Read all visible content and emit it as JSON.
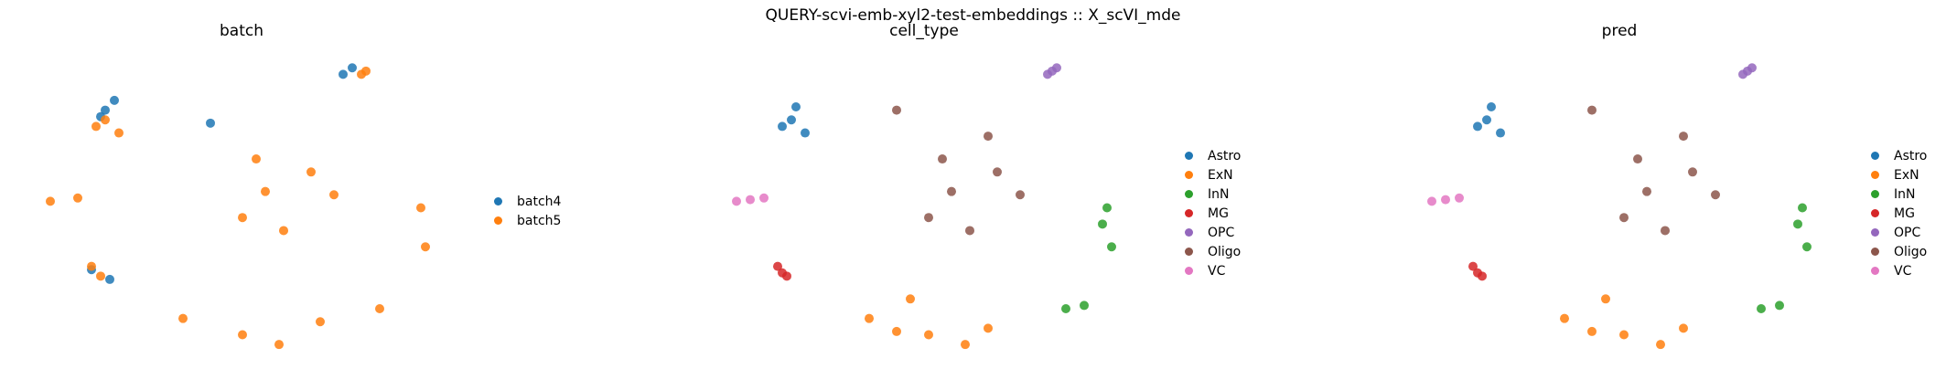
{
  "suptitle": "QUERY-scvi-emb-xyl2-test-embeddings :: X_scVI_mde",
  "chart_data": [
    {
      "type": "scatter",
      "title": "batch",
      "embedding": "X_scVI_mde",
      "legend_placement": "right",
      "grid": false,
      "axes_visible": false,
      "categories": [
        {
          "name": "batch4",
          "color": "#1f77b4"
        },
        {
          "name": "batch5",
          "color": "#ff7f0e"
        }
      ],
      "series": [
        {
          "name": "batch4",
          "x": [
            -4.1,
            -3.9,
            -4.2,
            -1.8,
            -4.4,
            -4.0,
            1.3,
            1.1
          ],
          "y": [
            3.3,
            3.6,
            3.1,
            2.9,
            -1.6,
            -1.9,
            4.6,
            4.4
          ]
        },
        {
          "name": "batch5",
          "x": [
            -4.1,
            -4.3,
            -3.8,
            -4.4,
            -4.2,
            -0.6,
            0.4,
            -1.1,
            -0.2,
            0.9,
            -0.8,
            1.6,
            1.5,
            2.8,
            2.9,
            -2.4,
            -1.1,
            -0.3,
            0.6,
            1.9,
            -5.3,
            -4.7
          ],
          "y": [
            3.0,
            2.8,
            2.6,
            -1.5,
            -1.8,
            0.8,
            1.4,
            0.0,
            -0.4,
            0.7,
            1.8,
            4.5,
            4.4,
            0.3,
            -0.9,
            -3.1,
            -3.6,
            -3.9,
            -3.2,
            -2.8,
            0.5,
            0.6
          ]
        }
      ]
    },
    {
      "type": "scatter",
      "title": "cell_type",
      "embedding": "X_scVI_mde",
      "legend_placement": "right",
      "grid": false,
      "axes_visible": false,
      "categories": [
        {
          "name": "Astro",
          "color": "#1f77b4"
        },
        {
          "name": "ExN",
          "color": "#ff7f0e"
        },
        {
          "name": "InN",
          "color": "#2ca02c"
        },
        {
          "name": "MG",
          "color": "#d62728"
        },
        {
          "name": "OPC",
          "color": "#9467bd"
        },
        {
          "name": "Oligo",
          "color": "#8c564b"
        },
        {
          "name": "VC",
          "color": "#e377c2"
        }
      ],
      "series": [
        {
          "name": "Astro",
          "x": [
            -4.1,
            -4.3,
            -3.8,
            -4.0
          ],
          "y": [
            3.0,
            2.8,
            2.6,
            3.4
          ]
        },
        {
          "name": "ExN",
          "x": [
            -2.4,
            -1.8,
            -1.1,
            -0.3,
            0.2,
            -1.5
          ],
          "y": [
            -3.1,
            -3.5,
            -3.6,
            -3.9,
            -3.4,
            -2.5
          ]
        },
        {
          "name": "InN",
          "x": [
            2.8,
            2.9,
            2.7,
            1.9,
            2.3
          ],
          "y": [
            0.3,
            -0.9,
            -0.2,
            -2.8,
            -2.7
          ]
        },
        {
          "name": "MG",
          "x": [
            -4.4,
            -4.2,
            -4.3
          ],
          "y": [
            -1.5,
            -1.8,
            -1.7
          ]
        },
        {
          "name": "OPC",
          "x": [
            1.6,
            1.5,
            1.7
          ],
          "y": [
            4.5,
            4.4,
            4.6
          ]
        },
        {
          "name": "Oligo",
          "x": [
            -0.6,
            0.4,
            -1.1,
            -0.2,
            0.9,
            -0.8,
            0.2,
            -1.8
          ],
          "y": [
            0.8,
            1.4,
            0.0,
            -0.4,
            0.7,
            1.8,
            2.5,
            3.3
          ]
        },
        {
          "name": "VC",
          "x": [
            -5.3,
            -4.7,
            -5.0
          ],
          "y": [
            0.5,
            0.6,
            0.55
          ]
        }
      ]
    },
    {
      "type": "scatter",
      "title": "pred",
      "embedding": "X_scVI_mde",
      "legend_placement": "right",
      "grid": false,
      "axes_visible": false,
      "categories": [
        {
          "name": "Astro",
          "color": "#1f77b4"
        },
        {
          "name": "ExN",
          "color": "#ff7f0e"
        },
        {
          "name": "InN",
          "color": "#2ca02c"
        },
        {
          "name": "MG",
          "color": "#d62728"
        },
        {
          "name": "OPC",
          "color": "#9467bd"
        },
        {
          "name": "Oligo",
          "color": "#8c564b"
        },
        {
          "name": "VC",
          "color": "#e377c2"
        }
      ],
      "series": [
        {
          "name": "Astro",
          "x": [
            -4.1,
            -4.3,
            -3.8,
            -4.0
          ],
          "y": [
            3.0,
            2.8,
            2.6,
            3.4
          ]
        },
        {
          "name": "ExN",
          "x": [
            -2.4,
            -1.8,
            -1.1,
            -0.3,
            0.2,
            -1.5
          ],
          "y": [
            -3.1,
            -3.5,
            -3.6,
            -3.9,
            -3.4,
            -2.5
          ]
        },
        {
          "name": "InN",
          "x": [
            2.8,
            2.9,
            2.7,
            1.9,
            2.3
          ],
          "y": [
            0.3,
            -0.9,
            -0.2,
            -2.8,
            -2.7
          ]
        },
        {
          "name": "MG",
          "x": [
            -4.4,
            -4.2,
            -4.3
          ],
          "y": [
            -1.5,
            -1.8,
            -1.7
          ]
        },
        {
          "name": "OPC",
          "x": [
            1.6,
            1.5,
            1.7
          ],
          "y": [
            4.5,
            4.4,
            4.6
          ]
        },
        {
          "name": "Oligo",
          "x": [
            -0.6,
            0.4,
            -1.1,
            -0.2,
            0.9,
            -0.8,
            0.2,
            -1.8
          ],
          "y": [
            0.8,
            1.4,
            0.0,
            -0.4,
            0.7,
            1.8,
            2.5,
            3.3
          ]
        },
        {
          "name": "VC",
          "x": [
            -5.3,
            -4.7,
            -5.0
          ],
          "y": [
            0.5,
            0.6,
            0.55
          ]
        }
      ]
    }
  ]
}
